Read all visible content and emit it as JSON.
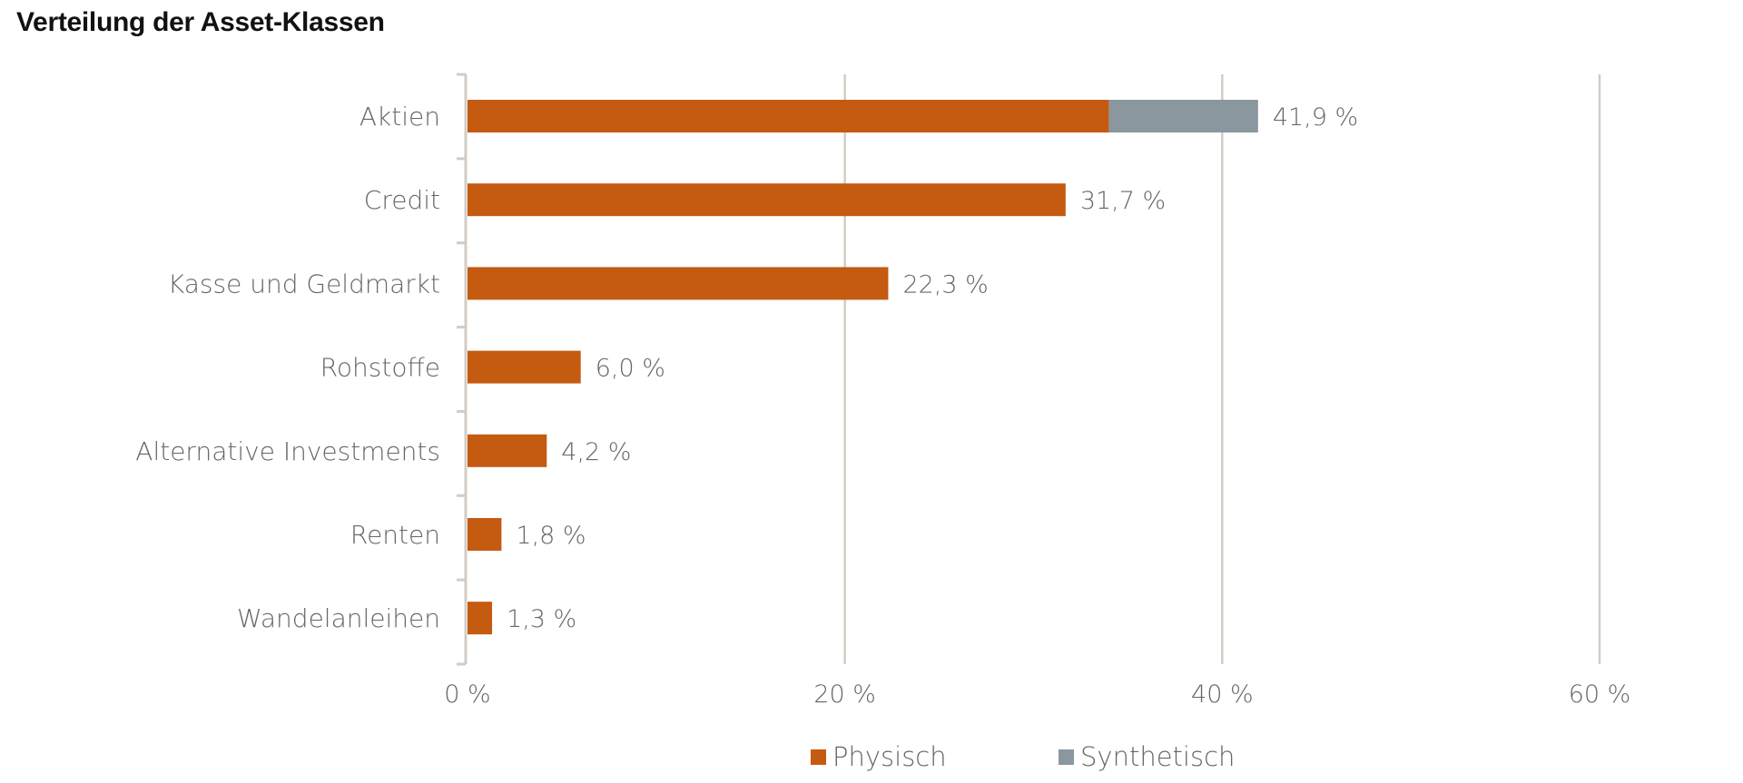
{
  "chart_data": {
    "type": "bar",
    "orientation": "horizontal",
    "stacked": true,
    "title": "Verteilung der Asset-Klassen",
    "categories": [
      "Aktien",
      "Credit",
      "Kasse und Geldmarkt",
      "Rohstoffe",
      "Alternative Investments",
      "Renten",
      "Wandelanleihen"
    ],
    "series": [
      {
        "name": "Physisch",
        "color": "#C55A11",
        "values": [
          34.0,
          31.7,
          22.3,
          6.0,
          4.2,
          1.8,
          1.3
        ]
      },
      {
        "name": "Synthetisch",
        "color": "#8A979F",
        "values": [
          7.9,
          0,
          0,
          0,
          0,
          0,
          0
        ]
      }
    ],
    "totals_labels": [
      "41,9 %",
      "31,7 %",
      "22,3 %",
      "6,0 %",
      "4,2 %",
      "1,8 %",
      "1,3 %"
    ],
    "xlim": [
      0,
      60
    ],
    "xticks": [
      0,
      20,
      40,
      60
    ],
    "xtick_labels": [
      "0 %",
      "20 %",
      "40 %",
      "60 %"
    ],
    "grid": "vertical",
    "gridline_color": "#D2CCC4",
    "legend_position": "bottom"
  }
}
